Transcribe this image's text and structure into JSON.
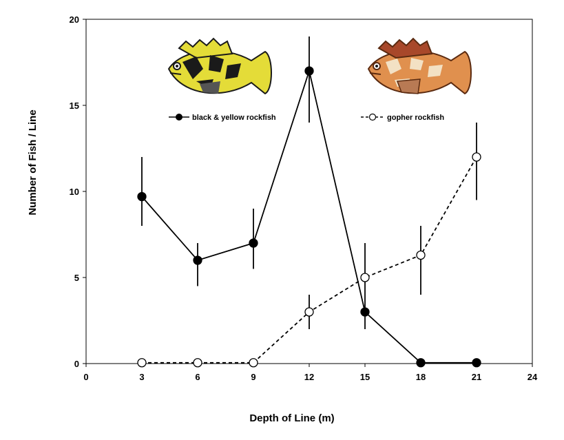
{
  "chart_data": {
    "type": "line",
    "xlabel": "Depth of Line (m)",
    "ylabel": "Number of Fish / Line",
    "xlim": [
      0,
      24
    ],
    "ylim": [
      0,
      20
    ],
    "xticks": [
      0,
      3,
      6,
      9,
      12,
      15,
      18,
      21,
      24
    ],
    "yticks": [
      0,
      5,
      10,
      15,
      20
    ],
    "grid": false,
    "legend_position": "top",
    "series": [
      {
        "name": "black & yellow rockfish",
        "marker": "filled-circle",
        "line_style": "solid",
        "x": [
          3,
          6,
          9,
          12,
          15,
          18,
          21
        ],
        "y": [
          9.7,
          6.0,
          7.0,
          17.0,
          3.0,
          0.05,
          0.05
        ],
        "err_low": [
          8.0,
          4.5,
          5.5,
          14.0,
          2.0,
          null,
          null
        ],
        "err_high": [
          12.0,
          7.0,
          9.0,
          19.0,
          7.0,
          null,
          null
        ]
      },
      {
        "name": "gopher rockfish",
        "marker": "open-circle",
        "line_style": "dashed",
        "x": [
          3,
          6,
          9,
          12,
          15,
          18,
          21
        ],
        "y": [
          0.05,
          0.05,
          0.05,
          3.0,
          5.0,
          6.3,
          12.0
        ],
        "err_low": [
          null,
          null,
          null,
          2.0,
          null,
          4.0,
          9.5
        ],
        "err_high": [
          null,
          null,
          null,
          4.0,
          null,
          8.0,
          14.0
        ]
      }
    ],
    "illustrations": [
      {
        "icon": "black-and-yellow-rockfish-icon",
        "colors": [
          "#e8e030",
          "#1a1a1a"
        ]
      },
      {
        "icon": "gopher-rockfish-icon",
        "colors": [
          "#d98a4a",
          "#f2e2c8",
          "#8a3a1a"
        ]
      }
    ]
  }
}
